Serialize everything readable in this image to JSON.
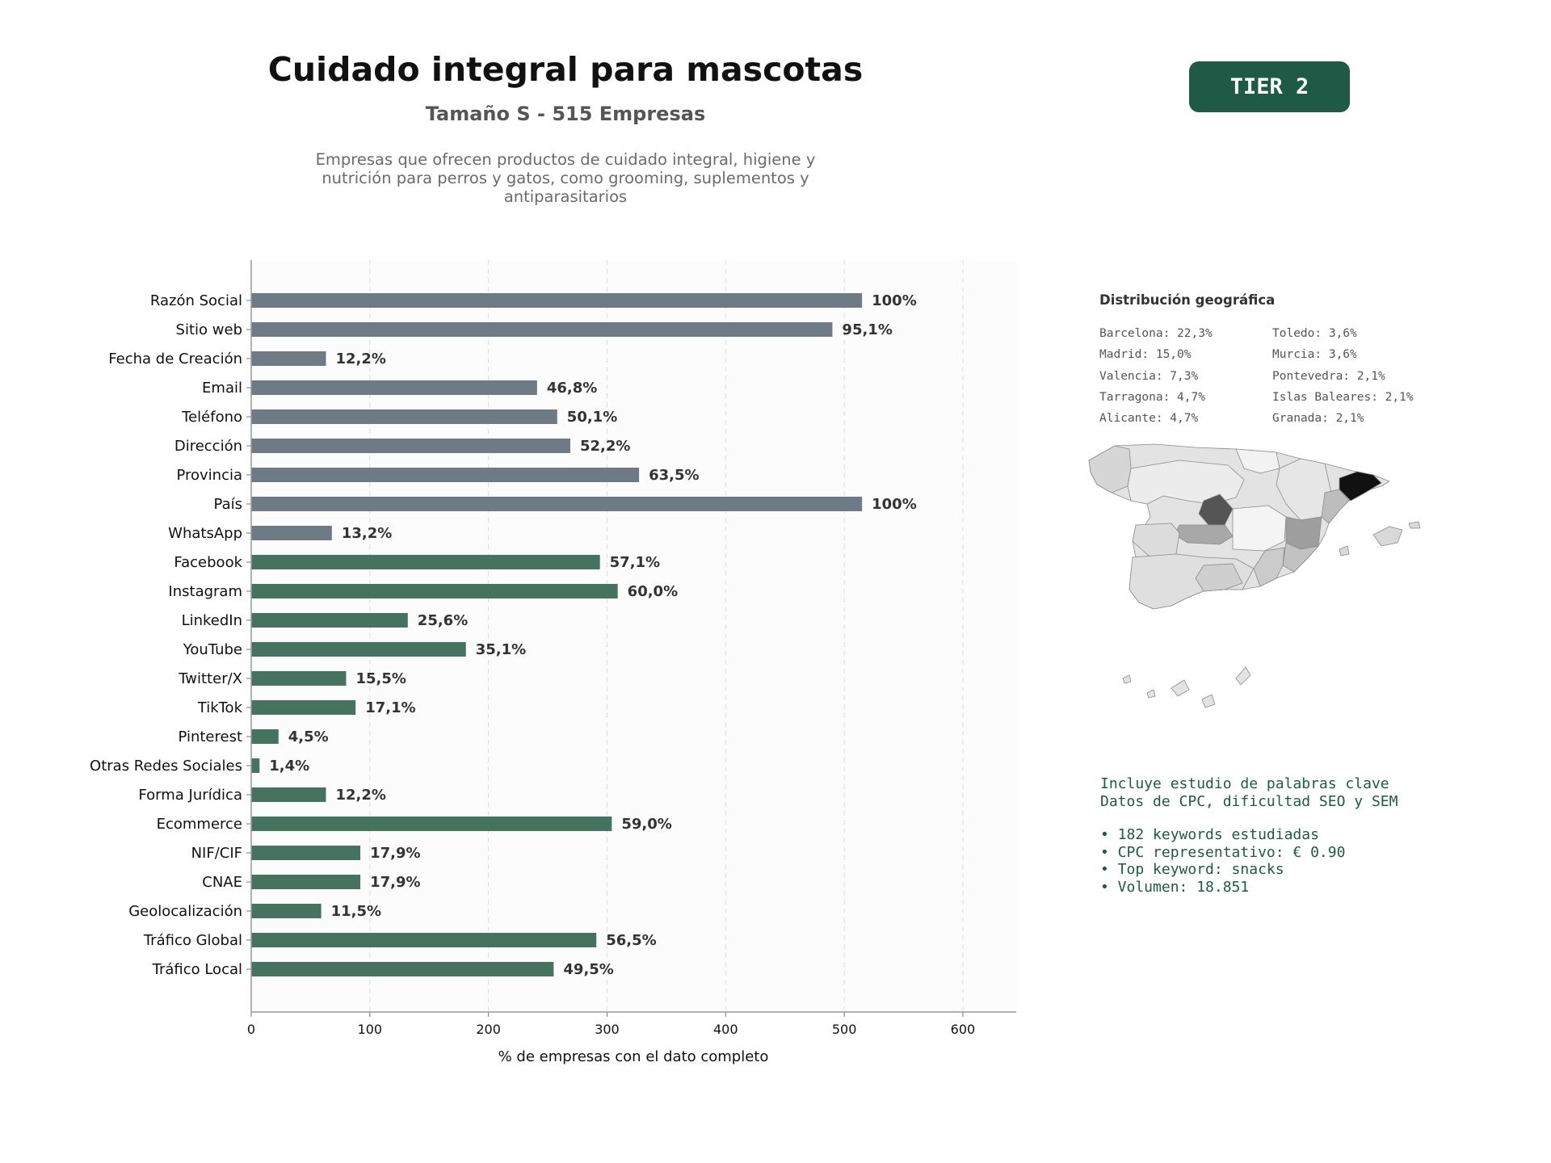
{
  "header": {
    "title": "Cuidado integral para mascotas",
    "subtitle": "Tamaño S - 515 Empresas",
    "description": "Empresas que ofrecen productos de cuidado integral, higiene y nutrición para perros y gatos, como grooming, suplementos y antiparasitarios",
    "tier_badge": "TIER 2"
  },
  "chart_data": {
    "type": "bar",
    "orientation": "horizontal",
    "xlabel": "% de empresas con el dato completo",
    "xlim": [
      0,
      645
    ],
    "xticks": [
      "0",
      "100",
      "200",
      "300",
      "400",
      "500",
      "600"
    ],
    "grid": "vertical dashed",
    "categories": [
      "Razón Social",
      "Sitio web",
      "Fecha de Creación",
      "Email",
      "Teléfono",
      "Dirección",
      "Provincia",
      "País",
      "WhatsApp",
      "Facebook",
      "Instagram",
      "LinkedIn",
      "YouTube",
      "Twitter/X",
      "TikTok",
      "Pinterest",
      "Otras Redes Sociales",
      "Forma Jurídica",
      "Ecommerce",
      "NIF/CIF",
      "CNAE",
      "Geolocalización",
      "Tráfico Global",
      "Tráfico Local"
    ],
    "values": [
      515,
      490,
      63,
      241,
      258,
      269,
      327,
      515,
      68,
      294,
      309,
      132,
      181,
      80,
      88,
      23,
      7,
      63,
      304,
      92,
      92,
      59,
      291,
      255
    ],
    "data_labels": [
      "100%",
      "95,1%",
      "12,2%",
      "46,8%",
      "50,1%",
      "52,2%",
      "63,5%",
      "100%",
      "13,2%",
      "57,1%",
      "60,0%",
      "25,6%",
      "35,1%",
      "15,5%",
      "17,1%",
      "4,5%",
      "1,4%",
      "12,2%",
      "59,0%",
      "17,9%",
      "17,9%",
      "11,5%",
      "56,5%",
      "49,5%"
    ],
    "groups": [
      "basic",
      "basic",
      "basic",
      "basic",
      "basic",
      "basic",
      "basic",
      "basic",
      "basic",
      "digital",
      "digital",
      "digital",
      "digital",
      "digital",
      "digital",
      "digital",
      "digital",
      "digital",
      "digital",
      "digital",
      "digital",
      "digital",
      "digital",
      "digital"
    ],
    "colors": {
      "basic": "#6e7a86",
      "digital": "#45735f"
    }
  },
  "geo": {
    "title": "Distribución geográfica",
    "left": [
      "Barcelona: 22,3%",
      "Madrid: 15,0%",
      "Valencia: 7,3%",
      "Tarragona: 4,7%",
      "Alicante: 4,7%"
    ],
    "right": [
      "Toledo: 3,6%",
      "Murcia: 3,6%",
      "Pontevedra: 2,1%",
      "Islas Baleares: 2,1%",
      "Granada: 2,1%"
    ]
  },
  "keywords": {
    "line1": "Incluye estudio de palabras clave",
    "line2": "Datos de CPC, dificultad SEO y SEM",
    "bullets": [
      "• 182 keywords estudiadas",
      "• CPC representativo: € 0.90",
      "• Top keyword: snacks",
      "• Volumen: 18.851"
    ]
  }
}
